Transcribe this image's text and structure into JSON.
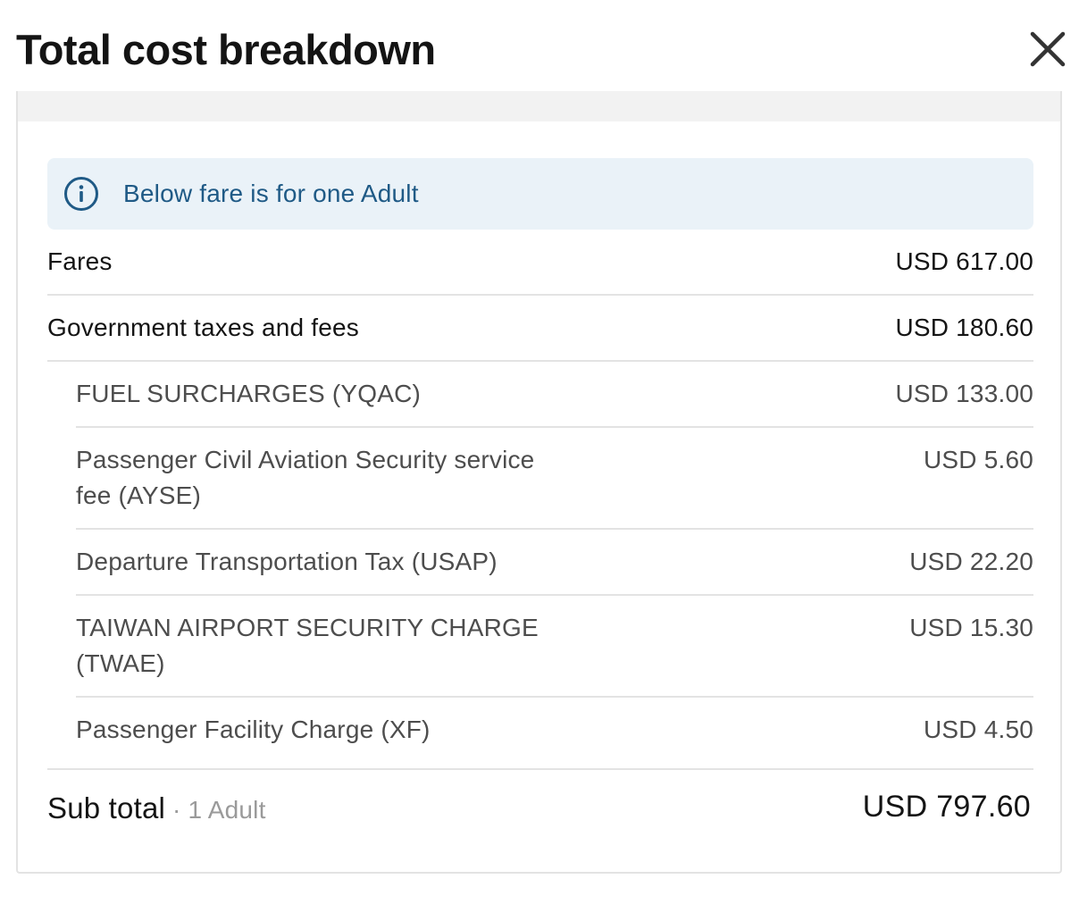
{
  "header": {
    "title": "Total cost breakdown"
  },
  "banner": {
    "text": "Below fare is for one Adult"
  },
  "fares": {
    "label": "Fares",
    "value": "USD 617.00"
  },
  "taxes": {
    "label": "Government taxes and fees",
    "value": "USD 180.60"
  },
  "tax_items": [
    {
      "label_line1": "FUEL SURCHARGES (YQAC)",
      "label_line2": "",
      "value": "USD 133.00"
    },
    {
      "label_line1": "Passenger Civil Aviation Security service",
      "label_line2": "fee (AYSE)",
      "value": "USD 5.60"
    },
    {
      "label_line1": "Departure Transportation Tax (USAP)",
      "label_line2": "",
      "value": "USD 22.20"
    },
    {
      "label_line1": "TAIWAN AIRPORT SECURITY CHARGE",
      "label_line2": "(TWAE)",
      "value": "USD 15.30"
    },
    {
      "label_line1": "Passenger Facility Charge (XF)",
      "label_line2": "",
      "value": "USD 4.50"
    }
  ],
  "subtotal": {
    "label": "Sub total",
    "note": " · 1 Adult",
    "value": "USD 797.60"
  }
}
